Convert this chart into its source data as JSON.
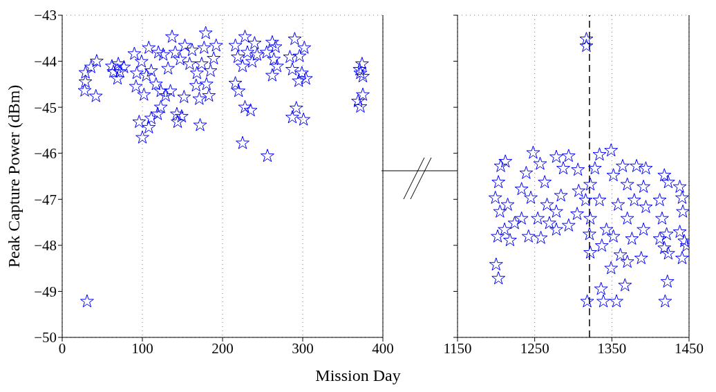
{
  "chart_data": [
    {
      "type": "scatter",
      "ylabel": "Peak Capture Power (dBm)",
      "xlabel": "Mission Day",
      "color": "#0000ff",
      "marker": "star",
      "grid": true,
      "xlim": [
        0,
        400
      ],
      "xticks": [
        0,
        100,
        200,
        300,
        400
      ],
      "ylim": [
        -50,
        -43
      ],
      "yticks": [
        -50,
        -49,
        -48,
        -47,
        -46,
        -45,
        -44,
        -43
      ],
      "x": [
        28,
        29,
        29,
        36,
        43,
        42,
        31,
        62,
        70,
        77,
        69,
        64,
        72,
        90,
        93,
        92,
        102,
        99,
        108,
        111,
        117,
        123,
        129,
        135,
        137,
        126,
        132,
        141,
        147,
        152,
        153,
        159,
        162,
        168,
        171,
        167,
        177,
        179,
        183,
        180,
        185,
        189,
        192,
        174,
        120,
        105,
        123,
        119,
        111,
        108,
        96,
        100,
        143,
        144,
        149,
        172,
        228,
        216,
        240,
        219,
        231,
        243,
        225,
        237,
        216,
        220,
        228,
        235,
        225,
        256,
        262,
        266,
        255,
        264,
        268,
        262,
        290,
        302,
        284,
        296,
        287,
        299,
        295,
        304,
        292,
        287,
        301,
        374,
        371,
        375,
        372,
        375,
        369,
        372
      ],
      "values": [
        -44.64,
        -44.45,
        -44.25,
        -44.13,
        -44.0,
        -44.76,
        -49.22,
        -44.11,
        -44.06,
        -44.13,
        -44.38,
        -44.23,
        -44.23,
        -43.84,
        -44.26,
        -44.55,
        -44.73,
        -44.01,
        -43.71,
        -44.21,
        -44.5,
        -44.65,
        -44.75,
        -44.65,
        -43.47,
        -43.86,
        -44.16,
        -43.81,
        -43.96,
        -44.78,
        -43.66,
        -44.06,
        -43.76,
        -44.26,
        -44.82,
        -44.53,
        -43.71,
        -43.39,
        -44.75,
        -44.5,
        -44.21,
        -43.94,
        -43.66,
        -44.06,
        -43.81,
        -44.31,
        -45.0,
        -45.15,
        -45.24,
        -45.44,
        -45.32,
        -45.66,
        -45.15,
        -45.32,
        -45.2,
        -45.39,
        -43.47,
        -43.66,
        -43.61,
        -43.91,
        -43.81,
        -43.86,
        -44.11,
        -44.01,
        -44.48,
        -44.65,
        -45.0,
        -45.07,
        -45.78,
        -46.06,
        -43.59,
        -43.69,
        -43.81,
        -43.96,
        -44.11,
        -44.31,
        -43.52,
        -43.71,
        -43.91,
        -43.89,
        -44.18,
        -44.26,
        -44.43,
        -44.38,
        -45.02,
        -45.22,
        -45.27,
        -44.06,
        -44.18,
        -44.33,
        -44.26,
        -44.73,
        -44.87,
        -44.99
      ]
    },
    {
      "type": "scatter",
      "color": "#0000ff",
      "marker": "star",
      "grid": true,
      "tick_labels": "x",
      "xlim": [
        1150,
        1450
      ],
      "xticks": [
        1150,
        1250,
        1350,
        1450
      ],
      "ylim": [
        -50,
        -43
      ],
      "yticks": [
        -50,
        -49,
        -48,
        -47,
        -46,
        -45,
        -44,
        -43
      ],
      "ref_lines": [
        {
          "axis": "x",
          "value": 1321,
          "color": "#000000",
          "line_style": "dashed"
        }
      ],
      "x": [
        1317,
        1317,
        1200,
        1203,
        1206,
        1212,
        1203,
        1199,
        1205,
        1215,
        1202,
        1218,
        1211,
        1224,
        1233,
        1242,
        1258,
        1239,
        1248,
        1233,
        1245,
        1257,
        1263,
        1266,
        1278,
        1287,
        1294,
        1284,
        1278,
        1278,
        1294,
        1306,
        1307,
        1305,
        1316,
        1254,
        1269,
        1334,
        1349,
        1328,
        1322,
        1334,
        1322,
        1321,
        1322,
        1337,
        1343,
        1349,
        1352,
        1364,
        1370,
        1358,
        1370,
        1361,
        1370,
        1379,
        1382,
        1394,
        1391,
        1394,
        1391,
        1388,
        1376,
        1352,
        1367,
        1336,
        1318,
        1339,
        1356,
        1418,
        1423,
        1412,
        1415,
        1421,
        1418,
        1423,
        1422,
        1419,
        1412,
        1438,
        1441,
        1442,
        1438,
        1444,
        1441,
        1447
      ],
      "values": [
        -43.52,
        -43.67,
        -48.42,
        -48.72,
        -46.28,
        -46.18,
        -46.63,
        -46.97,
        -47.27,
        -47.12,
        -47.81,
        -47.89,
        -47.66,
        -47.52,
        -47.42,
        -47.81,
        -47.84,
        -46.43,
        -45.99,
        -46.78,
        -46.97,
        -46.23,
        -46.63,
        -47.12,
        -46.08,
        -46.33,
        -46.06,
        -46.92,
        -47.27,
        -47.66,
        -47.57,
        -46.36,
        -46.82,
        -47.32,
        -47.02,
        -47.42,
        -47.52,
        -46.03,
        -45.94,
        -46.33,
        -46.68,
        -47.02,
        -47.42,
        -47.76,
        -48.16,
        -48.01,
        -47.66,
        -48.5,
        -46.48,
        -46.28,
        -46.68,
        -47.12,
        -47.42,
        -48.21,
        -48.36,
        -47.02,
        -46.28,
        -46.33,
        -46.73,
        -47.17,
        -47.66,
        -48.28,
        -47.86,
        -47.81,
        -48.87,
        -48.95,
        -49.22,
        -49.22,
        -49.22,
        -46.48,
        -46.63,
        -47.02,
        -47.42,
        -47.76,
        -48.06,
        -48.18,
        -48.79,
        -49.22,
        -47.86,
        -46.73,
        -46.97,
        -47.27,
        -47.71,
        -47.91,
        -48.28,
        -48.01
      ]
    }
  ]
}
